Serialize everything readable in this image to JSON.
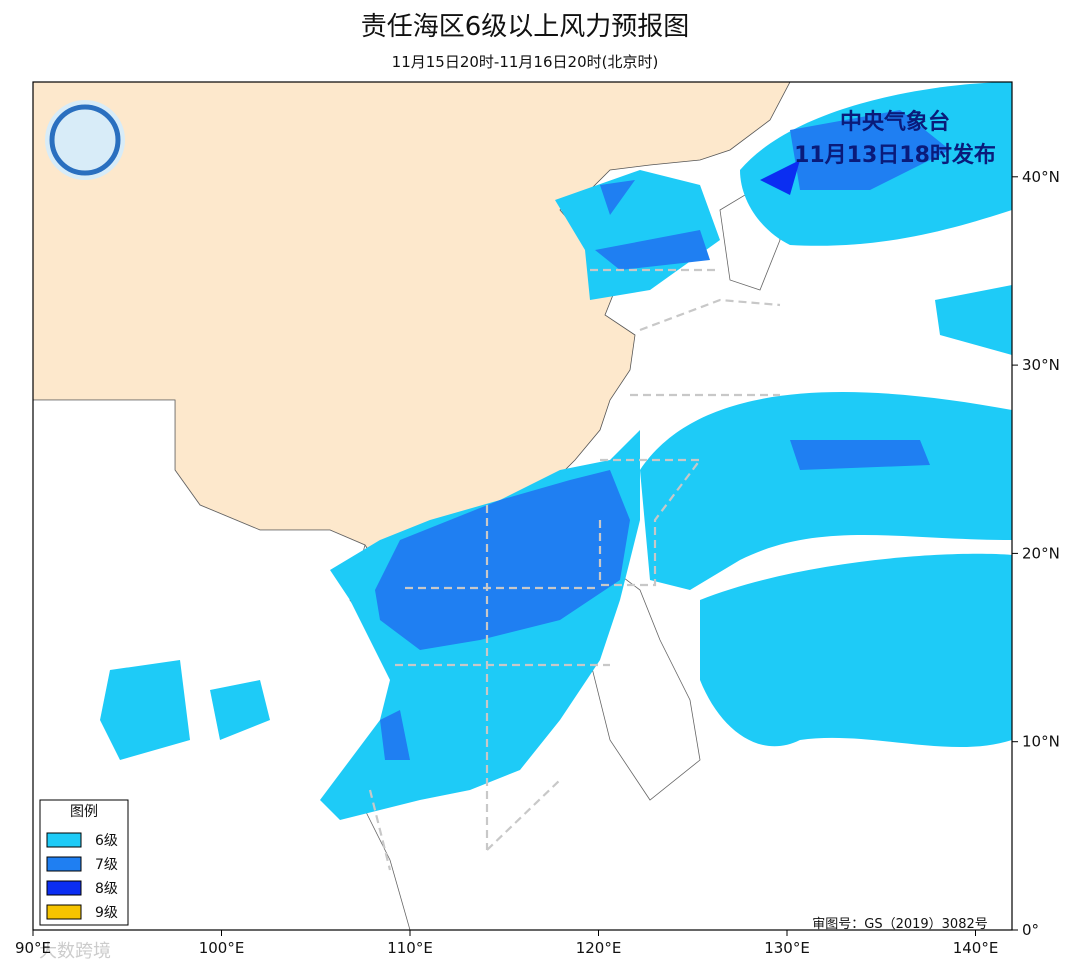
{
  "header": {
    "title": "责任海区6级以上风力预报图",
    "subtitle": "11月15日20时-11月16日20时(北京时)"
  },
  "issuer": {
    "name": "中央气象台",
    "time": "11月13日18时发布"
  },
  "legend": {
    "title": "图例",
    "items": [
      {
        "label": "6级",
        "color": "#1ecbf7"
      },
      {
        "label": "7级",
        "color": "#1f7ff2"
      },
      {
        "label": "8级",
        "color": "#0b2ef2"
      },
      {
        "label": "9级",
        "color": "#f6c400"
      }
    ]
  },
  "axes": {
    "x_labels": [
      "90°E",
      "100°E",
      "110°E",
      "120°E",
      "130°E",
      "140°E"
    ],
    "y_labels": [
      "0°",
      "10°N",
      "20°N",
      "30°N",
      "40°N"
    ]
  },
  "approval": "审图号：GS（2019）3082号",
  "watermark": "大数跨境"
}
